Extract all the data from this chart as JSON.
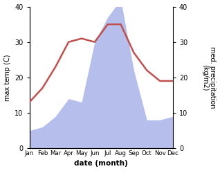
{
  "months": [
    "Jan",
    "Feb",
    "Mar",
    "Apr",
    "May",
    "Jun",
    "Jul",
    "Aug",
    "Sep",
    "Oct",
    "Nov",
    "Dec"
  ],
  "temperature": [
    13,
    17,
    23,
    30,
    31,
    30,
    35,
    35,
    27,
    22,
    19,
    19
  ],
  "precipitation": [
    5,
    6,
    9,
    14,
    13,
    30,
    37,
    42,
    22,
    8,
    8,
    9
  ],
  "temp_color": "#c0504d",
  "precip_fill_color": "#aab4e8",
  "ylabel_left": "max temp (C)",
  "ylabel_right": "med. precipitation\n(kg/m2)",
  "xlabel": "date (month)",
  "ylim_left": [
    0,
    40
  ],
  "ylim_right": [
    0,
    40
  ],
  "yticks_left": [
    0,
    10,
    20,
    30,
    40
  ],
  "yticks_right": [
    0,
    10,
    20,
    30,
    40
  ],
  "background_color": "#ffffff"
}
